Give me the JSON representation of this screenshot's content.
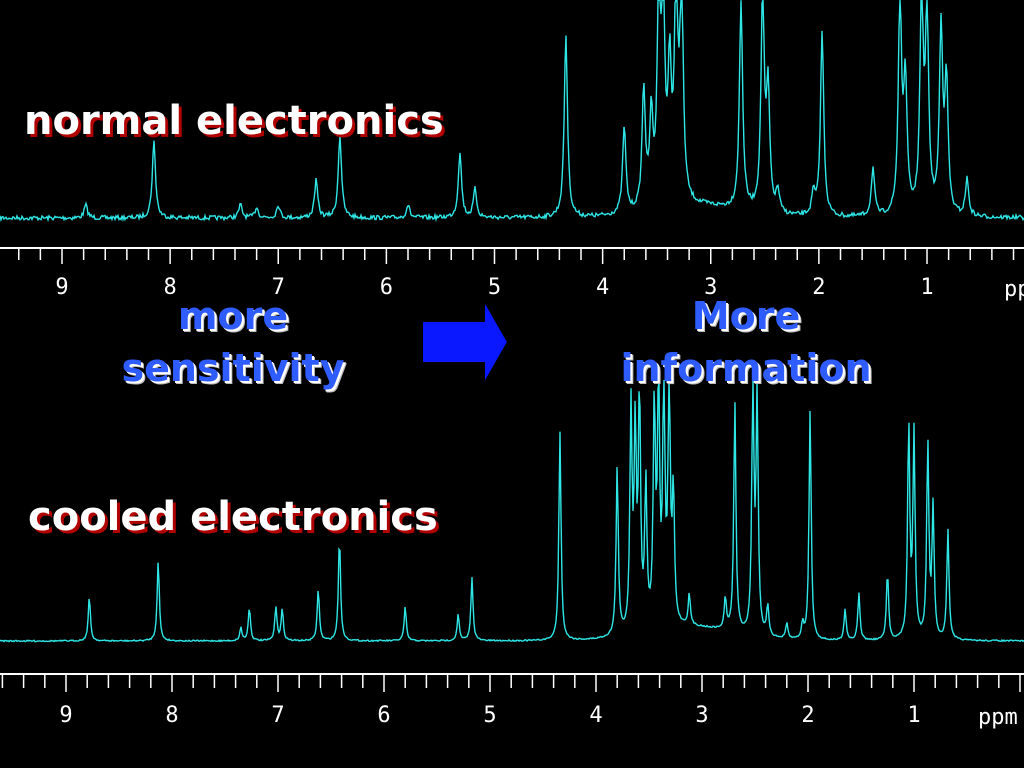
{
  "labels": {
    "top": "normal electronics",
    "bottom": "cooled electronics",
    "left_line1": "more",
    "left_line2": "sensitivity",
    "right_line1": "More",
    "right_line2": "information"
  },
  "colors": {
    "background": "#000000",
    "spectrum": "#2ee6e6",
    "axis": "#ffffff",
    "arrow": "#0a18ff",
    "label_shadow": "#b00000",
    "blue_text": "#2f5cff"
  },
  "icons": {
    "arrow": "right-arrow-icon"
  },
  "chart_data": [
    {
      "type": "line",
      "title": "normal electronics",
      "xlabel": "ppm",
      "ylabel": "",
      "xlim": [
        9.5,
        0
      ],
      "x_reversed": true,
      "grid": false,
      "ticks": [
        9,
        8,
        7,
        6,
        5,
        4,
        3,
        2,
        1
      ],
      "tick_labels": [
        "9",
        "8",
        "7",
        "6",
        "5",
        "4",
        "3",
        "2",
        "1"
      ],
      "peaks": [
        {
          "ppm": 8.78,
          "height": 0.06
        },
        {
          "ppm": 8.15,
          "height": 0.35
        },
        {
          "ppm": 7.35,
          "height": 0.06
        },
        {
          "ppm": 7.2,
          "height": 0.05
        },
        {
          "ppm": 7.0,
          "height": 0.06
        },
        {
          "ppm": 6.65,
          "height": 0.17
        },
        {
          "ppm": 6.43,
          "height": 0.38
        },
        {
          "ppm": 5.8,
          "height": 0.06
        },
        {
          "ppm": 5.32,
          "height": 0.3
        },
        {
          "ppm": 5.18,
          "height": 0.13
        },
        {
          "ppm": 4.34,
          "height": 0.84
        },
        {
          "ppm": 3.8,
          "height": 0.4
        },
        {
          "ppm": 3.62,
          "height": 0.55
        },
        {
          "ppm": 3.55,
          "height": 0.4
        },
        {
          "ppm": 3.48,
          "height": 0.95
        },
        {
          "ppm": 3.44,
          "height": 0.9
        },
        {
          "ppm": 3.38,
          "height": 0.6
        },
        {
          "ppm": 3.32,
          "height": 1.0
        },
        {
          "ppm": 3.27,
          "height": 1.0
        },
        {
          "ppm": 2.72,
          "height": 0.95
        },
        {
          "ppm": 2.52,
          "height": 1.0
        },
        {
          "ppm": 2.47,
          "height": 0.55
        },
        {
          "ppm": 2.38,
          "height": 0.1
        },
        {
          "ppm": 2.05,
          "height": 0.1
        },
        {
          "ppm": 1.97,
          "height": 0.85
        },
        {
          "ppm": 1.5,
          "height": 0.22
        },
        {
          "ppm": 1.25,
          "height": 1.0
        },
        {
          "ppm": 1.2,
          "height": 0.6
        },
        {
          "ppm": 1.05,
          "height": 1.0
        },
        {
          "ppm": 1.0,
          "height": 0.9
        },
        {
          "ppm": 0.87,
          "height": 0.85
        },
        {
          "ppm": 0.82,
          "height": 0.6
        },
        {
          "ppm": 0.63,
          "height": 0.17
        }
      ]
    },
    {
      "type": "line",
      "title": "cooled electronics",
      "xlabel": "ppm",
      "ylabel": "",
      "xlim": [
        9.5,
        0
      ],
      "x_reversed": true,
      "grid": false,
      "ticks": [
        9,
        8,
        7,
        6,
        5,
        4,
        3,
        2,
        1
      ],
      "tick_labels": [
        "9",
        "8",
        "7",
        "6",
        "5",
        "4",
        "3",
        "2",
        "1"
      ],
      "peaks": [
        {
          "ppm": 8.78,
          "height": 0.17
        },
        {
          "ppm": 8.13,
          "height": 0.31
        },
        {
          "ppm": 7.35,
          "height": 0.05
        },
        {
          "ppm": 7.27,
          "height": 0.13
        },
        {
          "ppm": 7.02,
          "height": 0.13
        },
        {
          "ppm": 6.96,
          "height": 0.12
        },
        {
          "ppm": 6.62,
          "height": 0.2
        },
        {
          "ppm": 6.42,
          "height": 0.4
        },
        {
          "ppm": 5.8,
          "height": 0.13
        },
        {
          "ppm": 5.3,
          "height": 0.1
        },
        {
          "ppm": 5.17,
          "height": 0.24
        },
        {
          "ppm": 4.34,
          "height": 0.8
        },
        {
          "ppm": 3.8,
          "height": 0.65
        },
        {
          "ppm": 3.67,
          "height": 0.85
        },
        {
          "ppm": 3.63,
          "height": 0.75
        },
        {
          "ppm": 3.59,
          "height": 0.9
        },
        {
          "ppm": 3.53,
          "height": 0.55
        },
        {
          "ppm": 3.45,
          "height": 0.85
        },
        {
          "ppm": 3.41,
          "height": 0.9
        },
        {
          "ppm": 3.36,
          "height": 0.95
        },
        {
          "ppm": 3.31,
          "height": 0.95
        },
        {
          "ppm": 3.27,
          "height": 0.5
        },
        {
          "ppm": 3.12,
          "height": 0.12
        },
        {
          "ppm": 2.78,
          "height": 0.12
        },
        {
          "ppm": 2.69,
          "height": 0.88
        },
        {
          "ppm": 2.52,
          "height": 0.95
        },
        {
          "ppm": 2.48,
          "height": 0.9
        },
        {
          "ppm": 2.38,
          "height": 0.12
        },
        {
          "ppm": 2.2,
          "height": 0.06
        },
        {
          "ppm": 2.05,
          "height": 0.06
        },
        {
          "ppm": 1.98,
          "height": 0.88
        },
        {
          "ppm": 1.65,
          "height": 0.12
        },
        {
          "ppm": 1.52,
          "height": 0.18
        },
        {
          "ppm": 1.25,
          "height": 0.26
        },
        {
          "ppm": 1.05,
          "height": 0.82
        },
        {
          "ppm": 1.0,
          "height": 0.78
        },
        {
          "ppm": 0.87,
          "height": 0.75
        },
        {
          "ppm": 0.82,
          "height": 0.5
        },
        {
          "ppm": 0.68,
          "height": 0.42
        }
      ]
    }
  ]
}
